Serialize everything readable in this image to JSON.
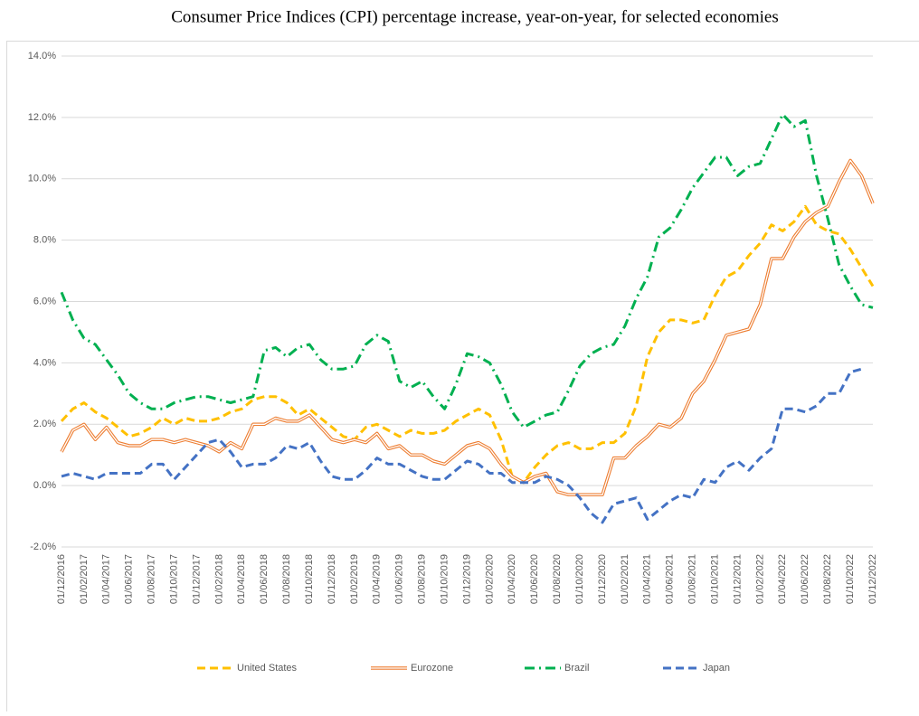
{
  "chart_data": {
    "type": "line",
    "title": "Consumer Price Indices (CPI) percentage increase, year-on-year, for selected economies",
    "categories": [
      "01/12/2016",
      null,
      "01/02/2017",
      null,
      "01/04/2017",
      null,
      "01/06/2017",
      null,
      "01/08/2017",
      null,
      "01/10/2017",
      null,
      "01/12/2017",
      null,
      "01/02/2018",
      null,
      "01/04/2018",
      null,
      "01/06/2018",
      null,
      "01/08/2018",
      null,
      "01/10/2018",
      null,
      "01/12/2018",
      null,
      "01/02/2019",
      null,
      "01/04/2019",
      null,
      "01/06/2019",
      null,
      "01/08/2019",
      null,
      "01/10/2019",
      null,
      "01/12/2019",
      null,
      "01/02/2020",
      null,
      "01/04/2020",
      null,
      "01/06/2020",
      null,
      "01/08/2020",
      null,
      "01/10/2020",
      null,
      "01/12/2020",
      null,
      "01/02/2021",
      null,
      "01/04/2021",
      null,
      "01/06/2021",
      null,
      "01/08/2021",
      null,
      "01/10/2021",
      null,
      "01/12/2021",
      null,
      "01/02/2022",
      null,
      "01/04/2022",
      null,
      "01/06/2022",
      null,
      "01/08/2022",
      null,
      "01/10/2022",
      null,
      "01/12/2022"
    ],
    "series": [
      {
        "name": "United States",
        "color": "#ffc000",
        "line_style": "dash",
        "values": [
          2.1,
          2.5,
          2.7,
          2.4,
          2.2,
          1.9,
          1.6,
          1.7,
          1.9,
          2.2,
          2.0,
          2.2,
          2.1,
          2.1,
          2.2,
          2.4,
          2.5,
          2.8,
          2.9,
          2.9,
          2.7,
          2.3,
          2.5,
          2.2,
          1.9,
          1.6,
          1.5,
          1.9,
          2.0,
          1.8,
          1.6,
          1.8,
          1.7,
          1.7,
          1.8,
          2.1,
          2.3,
          2.5,
          2.3,
          1.5,
          0.3,
          0.1,
          0.6,
          1.0,
          1.3,
          1.4,
          1.2,
          1.2,
          1.4,
          1.4,
          1.7,
          2.6,
          4.2,
          5.0,
          5.4,
          5.4,
          5.3,
          5.4,
          6.2,
          6.8,
          7.0,
          7.5,
          7.9,
          8.5,
          8.3,
          8.6,
          9.1,
          8.5,
          8.3,
          8.2,
          7.7,
          7.1,
          6.5
        ]
      },
      {
        "name": "Eurozone",
        "color": "#ed7d31",
        "line_style": "double",
        "values": [
          1.1,
          1.8,
          2.0,
          1.5,
          1.9,
          1.4,
          1.3,
          1.3,
          1.5,
          1.5,
          1.4,
          1.5,
          1.4,
          1.3,
          1.1,
          1.4,
          1.2,
          2.0,
          2.0,
          2.2,
          2.1,
          2.1,
          2.3,
          1.9,
          1.5,
          1.4,
          1.5,
          1.4,
          1.7,
          1.2,
          1.3,
          1.0,
          1.0,
          0.8,
          0.7,
          1.0,
          1.3,
          1.4,
          1.2,
          0.7,
          0.3,
          0.1,
          0.3,
          0.4,
          -0.2,
          -0.3,
          -0.3,
          -0.3,
          -0.3,
          0.9,
          0.9,
          1.3,
          1.6,
          2.0,
          1.9,
          2.2,
          3.0,
          3.4,
          4.1,
          4.9,
          5.0,
          5.1,
          5.9,
          7.4,
          7.4,
          8.1,
          8.6,
          8.9,
          9.1,
          9.9,
          10.6,
          10.1,
          9.2
        ]
      },
      {
        "name": "Brazil",
        "color": "#00b050",
        "line_style": "dash-dot",
        "values": [
          6.3,
          5.4,
          4.8,
          4.6,
          4.1,
          3.6,
          3.0,
          2.7,
          2.5,
          2.5,
          2.7,
          2.8,
          2.9,
          2.9,
          2.8,
          2.7,
          2.8,
          2.9,
          4.4,
          4.5,
          4.2,
          4.5,
          4.6,
          4.1,
          3.8,
          3.8,
          3.9,
          4.6,
          4.9,
          4.7,
          3.4,
          3.2,
          3.4,
          2.9,
          2.5,
          3.3,
          4.3,
          4.2,
          4.0,
          3.3,
          2.4,
          1.9,
          2.1,
          2.3,
          2.4,
          3.1,
          3.9,
          4.3,
          4.5,
          4.6,
          5.2,
          6.1,
          6.8,
          8.1,
          8.4,
          9.0,
          9.7,
          10.2,
          10.7,
          10.7,
          10.1,
          10.4,
          10.5,
          11.3,
          12.1,
          11.7,
          11.9,
          10.1,
          8.7,
          7.2,
          6.5,
          5.9,
          5.8
        ]
      },
      {
        "name": "Japan",
        "color": "#4472c4",
        "line_style": "dash",
        "values": [
          0.3,
          0.4,
          0.3,
          0.2,
          0.4,
          0.4,
          0.4,
          0.4,
          0.7,
          0.7,
          0.2,
          0.6,
          1.0,
          1.4,
          1.5,
          1.1,
          0.6,
          0.7,
          0.7,
          0.9,
          1.3,
          1.2,
          1.4,
          0.8,
          0.3,
          0.2,
          0.2,
          0.5,
          0.9,
          0.7,
          0.7,
          0.5,
          0.3,
          0.2,
          0.2,
          0.5,
          0.8,
          0.7,
          0.4,
          0.4,
          0.1,
          0.1,
          0.1,
          0.3,
          0.2,
          0.0,
          -0.4,
          -0.9,
          -1.2,
          -0.6,
          -0.5,
          -0.4,
          -1.1,
          -0.8,
          -0.5,
          -0.3,
          -0.4,
          0.2,
          0.1,
          0.6,
          0.8,
          0.5,
          0.9,
          1.2,
          2.5,
          2.5,
          2.4,
          2.6,
          3.0,
          3.0,
          3.7,
          3.8,
          null
        ]
      }
    ],
    "ylim": [
      -2,
      14
    ],
    "yticks": [
      {
        "value": -2,
        "label": "-2.0%"
      },
      {
        "value": 0,
        "label": "0.0%"
      },
      {
        "value": 2,
        "label": "2.0%"
      },
      {
        "value": 4,
        "label": "4.0%"
      },
      {
        "value": 6,
        "label": "6.0%"
      },
      {
        "value": 8,
        "label": "8.0%"
      },
      {
        "value": 10,
        "label": "10.0%"
      },
      {
        "value": 12,
        "label": "12.0%"
      },
      {
        "value": 14,
        "label": "14.0%"
      }
    ],
    "grid": true,
    "legend": "bottom"
  }
}
